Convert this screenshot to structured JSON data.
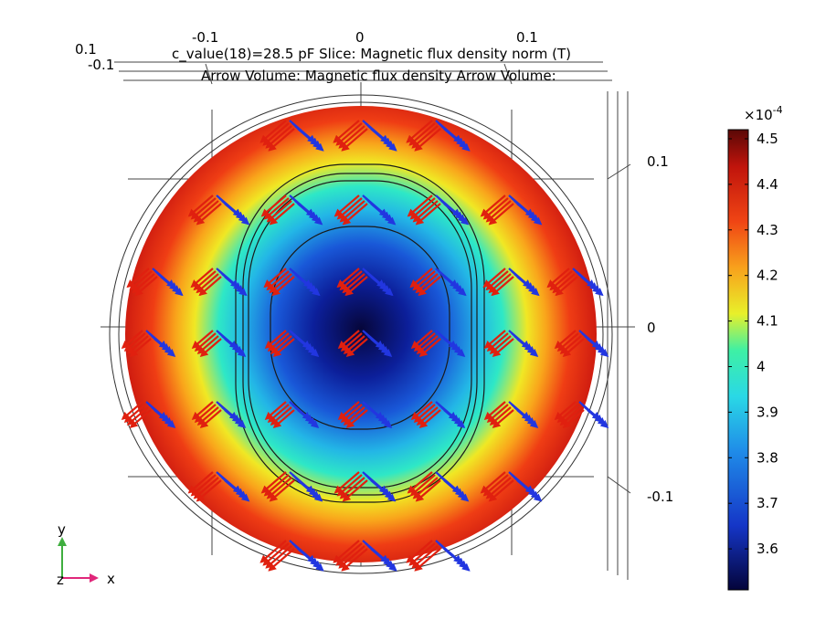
{
  "chart_data": {
    "type": "heatmap",
    "title_line1": "c_value(18)=28.5 pF   Slice: Magnetic flux density norm (T)",
    "title_line2": "Arrow Volume: Magnetic flux density  Arrow Volume:",
    "x_axis_ticks": [
      "-0.1",
      "0",
      "0.1"
    ],
    "top_left_ticks": [
      "0.1",
      "-0.1"
    ],
    "y_axis_ticks": [
      "0.1",
      "0",
      "-0.1"
    ],
    "colorbar": {
      "multiplier": "×10",
      "exponent": "-4",
      "ticks": [
        "4.5",
        "4.4",
        "4.3",
        "4.2",
        "4.1",
        "4",
        "3.9",
        "3.8",
        "3.7",
        "3.6"
      ],
      "tick_values": [
        4.5,
        4.4,
        4.3,
        4.2,
        4.1,
        4.0,
        3.9,
        3.8,
        3.7,
        3.6
      ],
      "range": [
        3.51,
        4.52
      ]
    },
    "field": {
      "min_center": 3.51,
      "max_edge": 4.52
    },
    "axis_triad": {
      "y_label": "y",
      "x_label": "x",
      "z_label": "z"
    }
  }
}
